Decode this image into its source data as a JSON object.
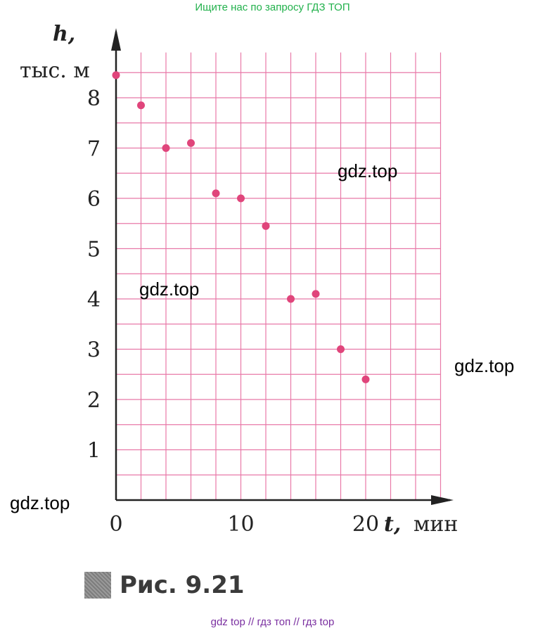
{
  "header_link": "Ищите нас по запросу ГДЗ ТОП",
  "footer_link": "gdz top  //  гдз топ  //  гдз top",
  "watermarks": [
    "gdz.top",
    "gdz.top",
    "gdz.top",
    "gdz.top"
  ],
  "caption": {
    "label": "Рис. 9.21"
  },
  "colors": {
    "grid": "#e879a8",
    "point": "#e0457b",
    "axis": "#222222",
    "header": "#22b14c",
    "footer": "#7a2fa0"
  },
  "chart_data": {
    "type": "scatter",
    "ylabel_var": "h,",
    "ylabel_unit": "тыс. м",
    "xlabel_var": "t,",
    "xlabel_unit": "мин",
    "xlim": [
      0,
      26
    ],
    "ylim": [
      0,
      8.9
    ],
    "grid": true,
    "xticks": [
      0,
      10,
      20
    ],
    "yticks": [
      1,
      2,
      3,
      4,
      5,
      6,
      7,
      8
    ],
    "points": [
      {
        "x": 0,
        "y": 8.45
      },
      {
        "x": 2,
        "y": 7.85
      },
      {
        "x": 4,
        "y": 7.0
      },
      {
        "x": 6,
        "y": 7.1
      },
      {
        "x": 8,
        "y": 6.1
      },
      {
        "x": 10,
        "y": 6.0
      },
      {
        "x": 12,
        "y": 5.45
      },
      {
        "x": 14,
        "y": 4.0
      },
      {
        "x": 16,
        "y": 4.1
      },
      {
        "x": 18,
        "y": 3.0
      },
      {
        "x": 20,
        "y": 2.4
      }
    ]
  }
}
